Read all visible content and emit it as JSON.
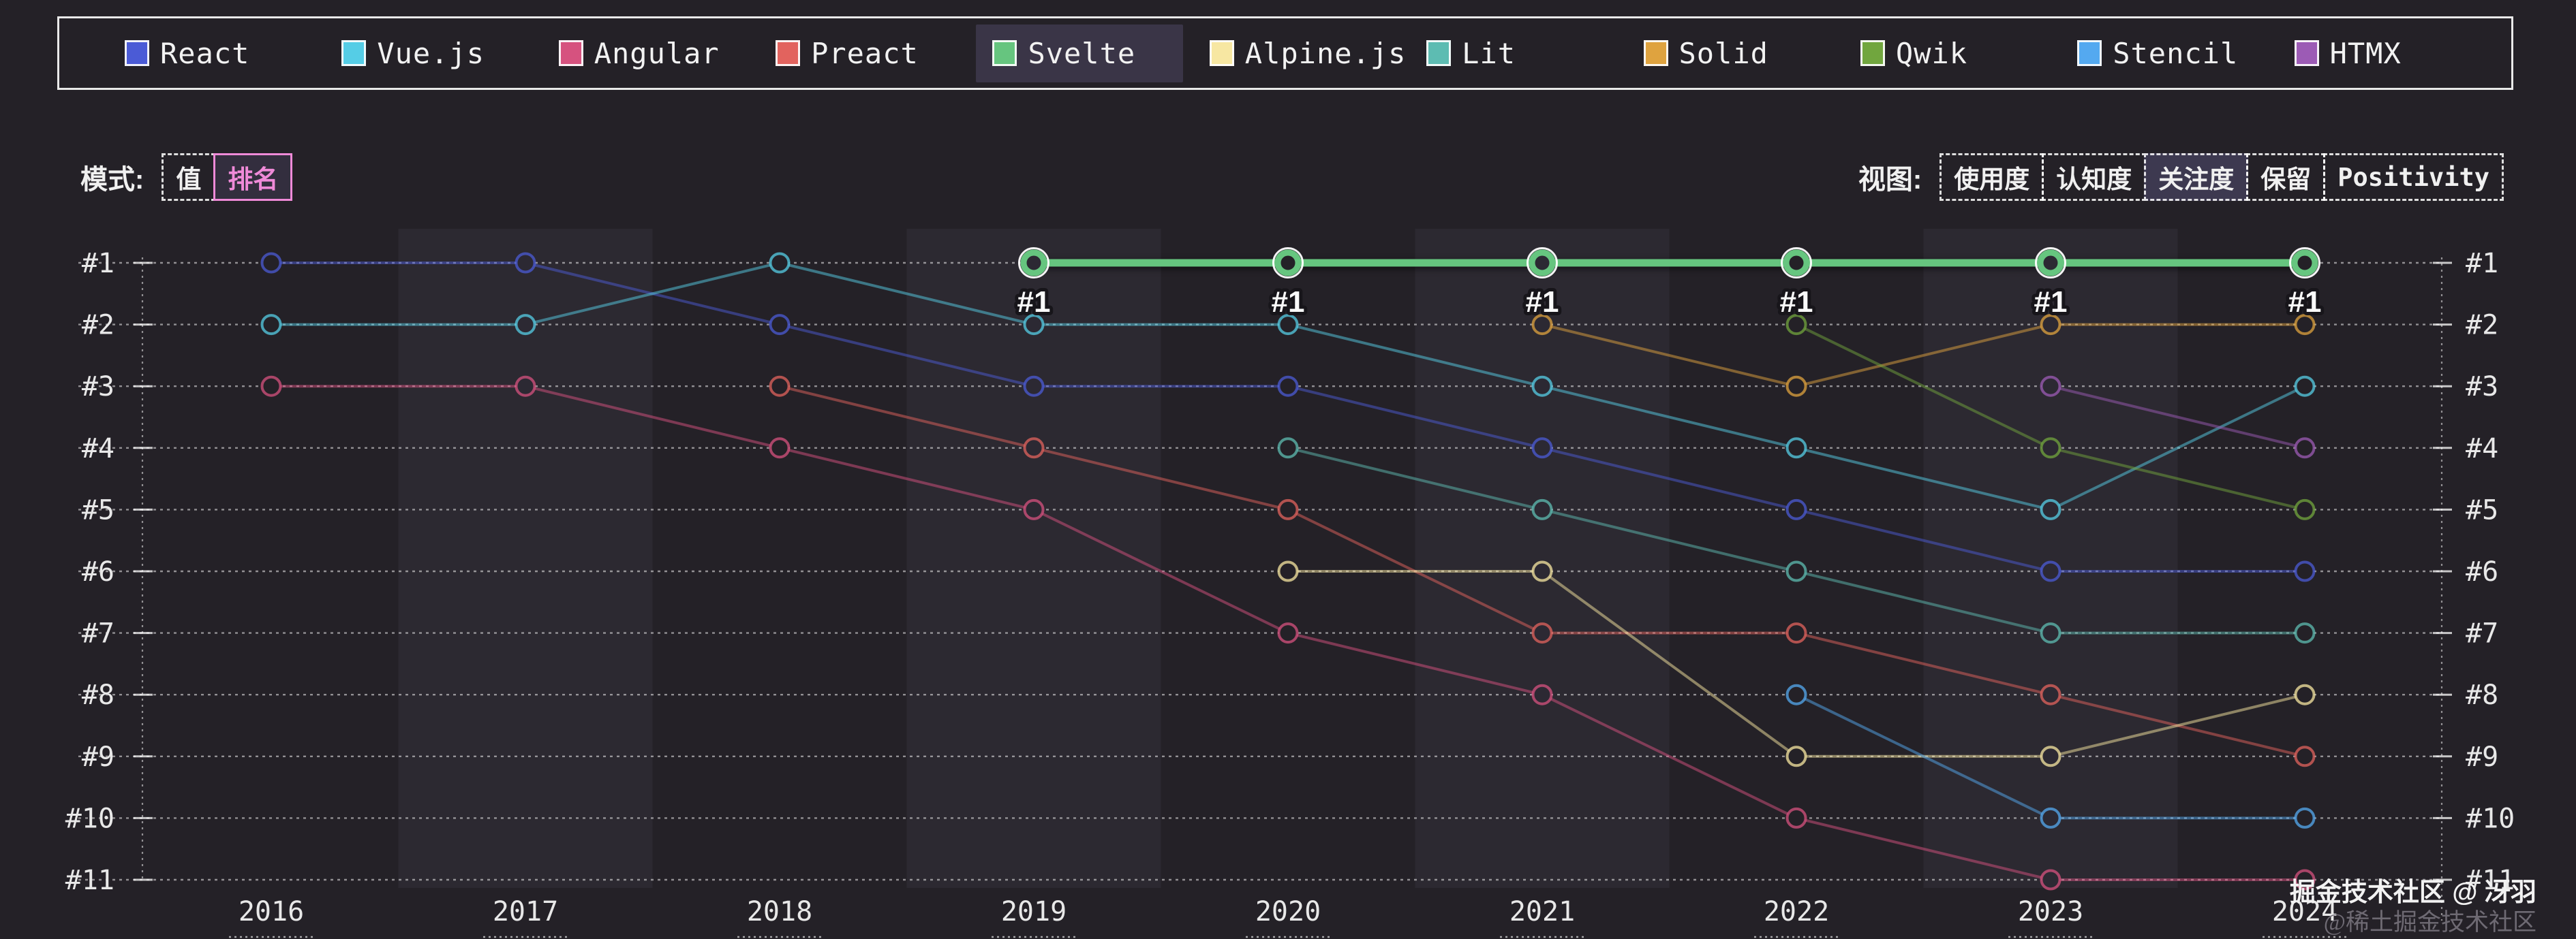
{
  "legend": {
    "items": [
      {
        "label": "React",
        "color": "#4b5bd6",
        "selected": false
      },
      {
        "label": "Vue.js",
        "color": "#55cde6",
        "selected": false
      },
      {
        "label": "Angular",
        "color": "#d6527f",
        "selected": false
      },
      {
        "label": "Preact",
        "color": "#e2635e",
        "selected": false
      },
      {
        "label": "Svelte",
        "color": "#66c57f",
        "selected": true
      },
      {
        "label": "Alpine.js",
        "color": "#f7e7a2",
        "selected": false
      },
      {
        "label": "Lit",
        "color": "#5dbcb2",
        "selected": false
      },
      {
        "label": "Solid",
        "color": "#dfa33f",
        "selected": false
      },
      {
        "label": "Qwik",
        "color": "#71a63e",
        "selected": false
      },
      {
        "label": "Stencil",
        "color": "#54a9f0",
        "selected": false
      },
      {
        "label": "HTMX",
        "color": "#9c5bb5",
        "selected": false
      }
    ]
  },
  "controls": {
    "mode": {
      "label": "模式:",
      "options": [
        {
          "label": "值",
          "selected": false
        },
        {
          "label": "排名",
          "selected": true,
          "accent": "#ef8ad8"
        }
      ]
    },
    "view": {
      "label": "视图:",
      "options": [
        {
          "label": "使用度",
          "selected": false
        },
        {
          "label": "认知度",
          "selected": false
        },
        {
          "label": "关注度",
          "selected": true
        },
        {
          "label": "保留",
          "selected": false
        },
        {
          "label": "Positivity",
          "selected": false,
          "mono": true
        }
      ]
    }
  },
  "watermark": {
    "line1": "掘金技术社区 @ 冴羽",
    "line2": "@稀土掘金技术社区"
  },
  "chart_data": {
    "type": "line",
    "subtype": "bump-rank",
    "title": "",
    "x": [
      2016,
      2017,
      2018,
      2019,
      2020,
      2021,
      2022,
      2023,
      2024
    ],
    "x_tick_labels": [
      "2016",
      "2017",
      "2018",
      "2019",
      "2020",
      "2021",
      "2022",
      "2023",
      "2024"
    ],
    "y_axis": {
      "labels": [
        "#1",
        "#2",
        "#3",
        "#4",
        "#5",
        "#6",
        "#7",
        "#8",
        "#9",
        "#10",
        "#11"
      ],
      "min": 1,
      "max": 11,
      "inverted": true,
      "shown_on": "both-sides"
    },
    "grid": "dotted-horizontal",
    "alternating_year_bands": true,
    "highlight_series": "Svelte",
    "highlight_point_label": "#1",
    "series": [
      {
        "name": "React",
        "color": "#4b5bd6",
        "ranks": [
          1,
          1,
          2,
          3,
          3,
          4,
          5,
          6,
          6
        ]
      },
      {
        "name": "Vue.js",
        "color": "#55cde6",
        "ranks": [
          2,
          2,
          1,
          2,
          2,
          3,
          4,
          5,
          3
        ]
      },
      {
        "name": "Angular",
        "color": "#d6527f",
        "ranks": [
          3,
          3,
          4,
          5,
          7,
          8,
          10,
          11,
          11
        ]
      },
      {
        "name": "Preact",
        "color": "#e2635e",
        "ranks": [
          null,
          null,
          3,
          4,
          5,
          7,
          7,
          8,
          9
        ]
      },
      {
        "name": "Svelte",
        "color": "#66c57f",
        "ranks": [
          null,
          null,
          null,
          1,
          1,
          1,
          1,
          1,
          1
        ],
        "highlight": true
      },
      {
        "name": "Alpine.js",
        "color": "#f7e7a2",
        "ranks": [
          null,
          null,
          null,
          null,
          6,
          6,
          9,
          9,
          8
        ]
      },
      {
        "name": "Lit",
        "color": "#5dbcb2",
        "ranks": [
          null,
          null,
          null,
          null,
          4,
          5,
          6,
          7,
          7
        ]
      },
      {
        "name": "Solid",
        "color": "#dfa33f",
        "ranks": [
          null,
          null,
          null,
          null,
          null,
          2,
          3,
          2,
          2
        ]
      },
      {
        "name": "Qwik",
        "color": "#71a63e",
        "ranks": [
          null,
          null,
          null,
          null,
          null,
          null,
          2,
          4,
          5
        ]
      },
      {
        "name": "Stencil",
        "color": "#54a9f0",
        "ranks": [
          null,
          null,
          null,
          null,
          null,
          null,
          8,
          10,
          10
        ]
      },
      {
        "name": "HTMX",
        "color": "#9c5bb5",
        "ranks": [
          null,
          null,
          null,
          null,
          null,
          null,
          null,
          3,
          4
        ]
      }
    ]
  },
  "colors": {
    "background": "#242127",
    "band_tint": "#bfaef0",
    "grid": "rgba(255,255,255,0.5)",
    "axis_text": "#e8e8e8",
    "legend_highlight_bg": "#3a3547",
    "selected_view_bg": "#3d3950",
    "mode_accent_pink": "#ef8ad8"
  }
}
